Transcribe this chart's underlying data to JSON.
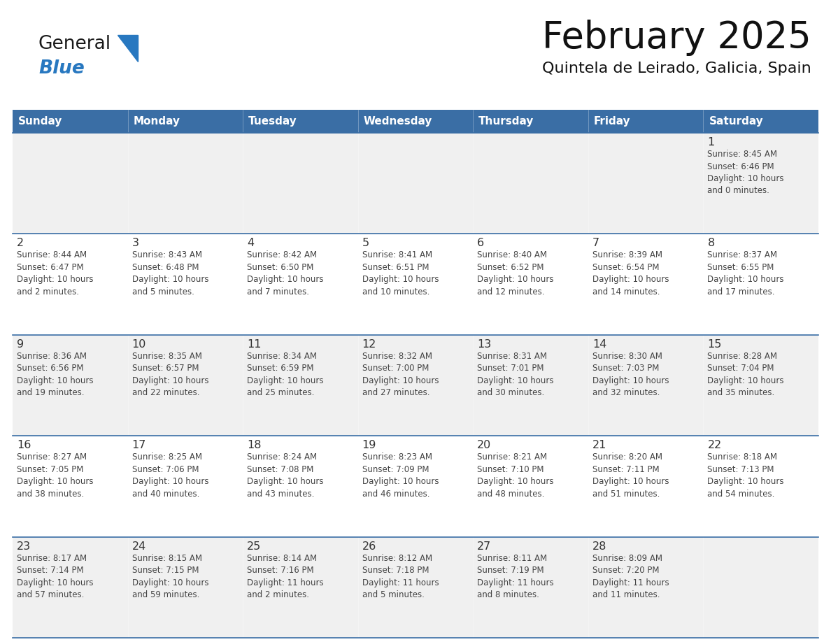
{
  "title": "February 2025",
  "subtitle": "Quintela de Leirado, Galicia, Spain",
  "header_bg_color": "#3A6EA5",
  "header_text_color": "#FFFFFF",
  "header_days": [
    "Sunday",
    "Monday",
    "Tuesday",
    "Wednesday",
    "Thursday",
    "Friday",
    "Saturday"
  ],
  "cell_bg_even": "#F0F0F0",
  "cell_bg_odd": "#FFFFFF",
  "cell_border_color": "#3A6EA5",
  "title_color": "#111111",
  "subtitle_color": "#111111",
  "day_number_color": "#333333",
  "text_color": "#444444",
  "logo_general_color": "#1a1a1a",
  "logo_blue_color": "#2878C0",
  "weeks": [
    {
      "days": [
        {
          "date": null,
          "info": null
        },
        {
          "date": null,
          "info": null
        },
        {
          "date": null,
          "info": null
        },
        {
          "date": null,
          "info": null
        },
        {
          "date": null,
          "info": null
        },
        {
          "date": null,
          "info": null
        },
        {
          "date": 1,
          "info": "Sunrise: 8:45 AM\nSunset: 6:46 PM\nDaylight: 10 hours\nand 0 minutes."
        }
      ]
    },
    {
      "days": [
        {
          "date": 2,
          "info": "Sunrise: 8:44 AM\nSunset: 6:47 PM\nDaylight: 10 hours\nand 2 minutes."
        },
        {
          "date": 3,
          "info": "Sunrise: 8:43 AM\nSunset: 6:48 PM\nDaylight: 10 hours\nand 5 minutes."
        },
        {
          "date": 4,
          "info": "Sunrise: 8:42 AM\nSunset: 6:50 PM\nDaylight: 10 hours\nand 7 minutes."
        },
        {
          "date": 5,
          "info": "Sunrise: 8:41 AM\nSunset: 6:51 PM\nDaylight: 10 hours\nand 10 minutes."
        },
        {
          "date": 6,
          "info": "Sunrise: 8:40 AM\nSunset: 6:52 PM\nDaylight: 10 hours\nand 12 minutes."
        },
        {
          "date": 7,
          "info": "Sunrise: 8:39 AM\nSunset: 6:54 PM\nDaylight: 10 hours\nand 14 minutes."
        },
        {
          "date": 8,
          "info": "Sunrise: 8:37 AM\nSunset: 6:55 PM\nDaylight: 10 hours\nand 17 minutes."
        }
      ]
    },
    {
      "days": [
        {
          "date": 9,
          "info": "Sunrise: 8:36 AM\nSunset: 6:56 PM\nDaylight: 10 hours\nand 19 minutes."
        },
        {
          "date": 10,
          "info": "Sunrise: 8:35 AM\nSunset: 6:57 PM\nDaylight: 10 hours\nand 22 minutes."
        },
        {
          "date": 11,
          "info": "Sunrise: 8:34 AM\nSunset: 6:59 PM\nDaylight: 10 hours\nand 25 minutes."
        },
        {
          "date": 12,
          "info": "Sunrise: 8:32 AM\nSunset: 7:00 PM\nDaylight: 10 hours\nand 27 minutes."
        },
        {
          "date": 13,
          "info": "Sunrise: 8:31 AM\nSunset: 7:01 PM\nDaylight: 10 hours\nand 30 minutes."
        },
        {
          "date": 14,
          "info": "Sunrise: 8:30 AM\nSunset: 7:03 PM\nDaylight: 10 hours\nand 32 minutes."
        },
        {
          "date": 15,
          "info": "Sunrise: 8:28 AM\nSunset: 7:04 PM\nDaylight: 10 hours\nand 35 minutes."
        }
      ]
    },
    {
      "days": [
        {
          "date": 16,
          "info": "Sunrise: 8:27 AM\nSunset: 7:05 PM\nDaylight: 10 hours\nand 38 minutes."
        },
        {
          "date": 17,
          "info": "Sunrise: 8:25 AM\nSunset: 7:06 PM\nDaylight: 10 hours\nand 40 minutes."
        },
        {
          "date": 18,
          "info": "Sunrise: 8:24 AM\nSunset: 7:08 PM\nDaylight: 10 hours\nand 43 minutes."
        },
        {
          "date": 19,
          "info": "Sunrise: 8:23 AM\nSunset: 7:09 PM\nDaylight: 10 hours\nand 46 minutes."
        },
        {
          "date": 20,
          "info": "Sunrise: 8:21 AM\nSunset: 7:10 PM\nDaylight: 10 hours\nand 48 minutes."
        },
        {
          "date": 21,
          "info": "Sunrise: 8:20 AM\nSunset: 7:11 PM\nDaylight: 10 hours\nand 51 minutes."
        },
        {
          "date": 22,
          "info": "Sunrise: 8:18 AM\nSunset: 7:13 PM\nDaylight: 10 hours\nand 54 minutes."
        }
      ]
    },
    {
      "days": [
        {
          "date": 23,
          "info": "Sunrise: 8:17 AM\nSunset: 7:14 PM\nDaylight: 10 hours\nand 57 minutes."
        },
        {
          "date": 24,
          "info": "Sunrise: 8:15 AM\nSunset: 7:15 PM\nDaylight: 10 hours\nand 59 minutes."
        },
        {
          "date": 25,
          "info": "Sunrise: 8:14 AM\nSunset: 7:16 PM\nDaylight: 11 hours\nand 2 minutes."
        },
        {
          "date": 26,
          "info": "Sunrise: 8:12 AM\nSunset: 7:18 PM\nDaylight: 11 hours\nand 5 minutes."
        },
        {
          "date": 27,
          "info": "Sunrise: 8:11 AM\nSunset: 7:19 PM\nDaylight: 11 hours\nand 8 minutes."
        },
        {
          "date": 28,
          "info": "Sunrise: 8:09 AM\nSunset: 7:20 PM\nDaylight: 11 hours\nand 11 minutes."
        },
        {
          "date": null,
          "info": null
        }
      ]
    }
  ]
}
